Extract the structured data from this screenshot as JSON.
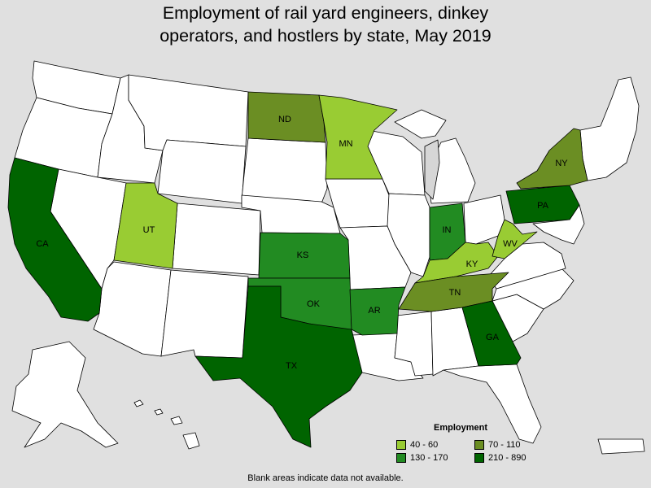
{
  "title": "Employment of rail yard engineers, dinkey\noperators, and hostlers by state, May 2019",
  "footnote": "Blank areas indicate data not available.",
  "colors": {
    "background": "#e0e0e0",
    "blank": "#ffffff",
    "water": "#d6d6d6",
    "bin_40_60": "#99cc33",
    "bin_70_110": "#6b8e23",
    "bin_130_170": "#228b22",
    "bin_210_890": "#006400"
  },
  "legend": {
    "title": "Employment",
    "items": [
      {
        "label": "40 - 60",
        "color": "#99cc33"
      },
      {
        "label": "70 - 110",
        "color": "#6b8e23"
      },
      {
        "label": "130 - 170",
        "color": "#228b22"
      },
      {
        "label": "210 - 890",
        "color": "#006400"
      }
    ]
  },
  "states": [
    {
      "abbr": "CA",
      "bin": "210 - 890",
      "color": "#006400"
    },
    {
      "abbr": "UT",
      "bin": "40 - 60",
      "color": "#99cc33"
    },
    {
      "abbr": "ND",
      "bin": "70 - 110",
      "color": "#6b8e23"
    },
    {
      "abbr": "MN",
      "bin": "40 - 60",
      "color": "#99cc33"
    },
    {
      "abbr": "KS",
      "bin": "130 - 170",
      "color": "#228b22"
    },
    {
      "abbr": "OK",
      "bin": "130 - 170",
      "color": "#228b22"
    },
    {
      "abbr": "TX",
      "bin": "210 - 890",
      "color": "#006400"
    },
    {
      "abbr": "AR",
      "bin": "130 - 170",
      "color": "#228b22"
    },
    {
      "abbr": "IN",
      "bin": "130 - 170",
      "color": "#228b22"
    },
    {
      "abbr": "KY",
      "bin": "40 - 60",
      "color": "#99cc33"
    },
    {
      "abbr": "TN",
      "bin": "70 - 110",
      "color": "#6b8e23"
    },
    {
      "abbr": "GA",
      "bin": "210 - 890",
      "color": "#006400"
    },
    {
      "abbr": "WV",
      "bin": "40 - 60",
      "color": "#99cc33"
    },
    {
      "abbr": "PA",
      "bin": "210 - 890",
      "color": "#006400"
    },
    {
      "abbr": "NY",
      "bin": "70 - 110",
      "color": "#6b8e23"
    }
  ]
}
